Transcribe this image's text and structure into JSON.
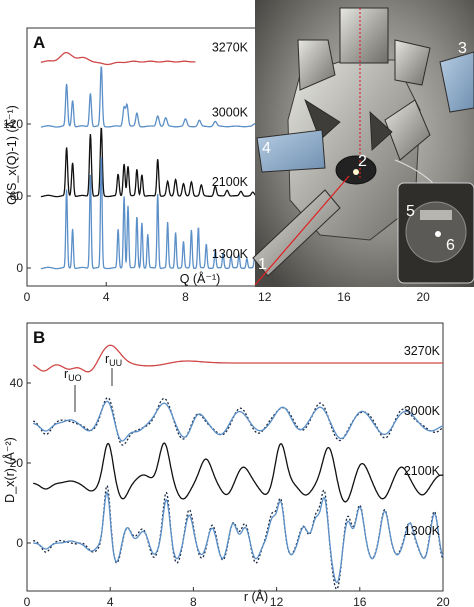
{
  "chart_data": [
    {
      "type": "line",
      "panel_label": "A",
      "ylabel": "Q(S_x(Q)-1) (Å⁻¹)",
      "xlabel": "Q (Å⁻¹)",
      "xlim": [
        0,
        21
      ],
      "xticks": [
        0,
        4,
        8,
        12,
        16,
        20
      ],
      "yticks": [
        0,
        60,
        120
      ],
      "ylim": [
        -15,
        200
      ],
      "series": [
        {
          "name": "3270K",
          "color": "#d04848",
          "offset": 172,
          "peaks": [
            [
              2.0,
              7,
              0.32
            ],
            [
              2.9,
              3,
              0.3
            ],
            [
              4.0,
              -2,
              0.5
            ]
          ]
        },
        {
          "name": "3000K",
          "color": "#5b8fc7",
          "offset": 118,
          "peaks": [
            [
              2.0,
              35,
              0.05
            ],
            [
              2.3,
              22,
              0.05
            ],
            [
              3.2,
              28,
              0.05
            ],
            [
              3.75,
              50,
              0.05
            ],
            [
              4.9,
              16,
              0.06
            ],
            [
              5.05,
              18,
              0.06
            ],
            [
              5.55,
              11,
              0.06
            ],
            [
              6.6,
              9,
              0.07
            ],
            [
              7.0,
              7,
              0.07
            ],
            [
              8.0,
              6,
              0.07
            ],
            [
              8.7,
              5,
              0.07
            ],
            [
              9.5,
              4,
              0.08
            ],
            [
              11.5,
              2,
              0.08
            ]
          ]
        },
        {
          "name": "2100K",
          "color": "#111111",
          "offset": 60,
          "peaks": [
            [
              2.0,
              40,
              0.05
            ],
            [
              2.3,
              28,
              0.05
            ],
            [
              3.2,
              52,
              0.05
            ],
            [
              3.75,
              57,
              0.05
            ],
            [
              4.6,
              18,
              0.05
            ],
            [
              4.9,
              27,
              0.05
            ],
            [
              5.1,
              25,
              0.05
            ],
            [
              5.55,
              22,
              0.05
            ],
            [
              5.8,
              18,
              0.05
            ],
            [
              6.6,
              31,
              0.05
            ],
            [
              7.1,
              12,
              0.06
            ],
            [
              7.5,
              14,
              0.06
            ],
            [
              7.9,
              10,
              0.06
            ],
            [
              8.3,
              12,
              0.06
            ],
            [
              8.8,
              9,
              0.06
            ],
            [
              9.5,
              8,
              0.06
            ],
            [
              10.1,
              5,
              0.07
            ],
            [
              10.8,
              4,
              0.07
            ],
            [
              11.4,
              3,
              0.07
            ],
            [
              12.0,
              3,
              0.07
            ]
          ]
        },
        {
          "name": "1300K",
          "color": "#5b8fc7",
          "offset": 0,
          "peaks": [
            [
              2.0,
              65,
              0.04
            ],
            [
              2.3,
              33,
              0.04
            ],
            [
              3.2,
              78,
              0.04
            ],
            [
              3.75,
              94,
              0.04
            ],
            [
              4.6,
              32,
              0.04
            ],
            [
              4.9,
              60,
              0.04
            ],
            [
              5.1,
              52,
              0.04
            ],
            [
              5.55,
              43,
              0.04
            ],
            [
              5.8,
              38,
              0.04
            ],
            [
              6.1,
              28,
              0.04
            ],
            [
              6.6,
              62,
              0.04
            ],
            [
              7.1,
              38,
              0.04
            ],
            [
              7.5,
              30,
              0.04
            ],
            [
              7.9,
              22,
              0.04
            ],
            [
              8.3,
              32,
              0.04
            ],
            [
              8.65,
              34,
              0.04
            ],
            [
              9.05,
              20,
              0.04
            ],
            [
              9.5,
              15,
              0.04
            ],
            [
              9.9,
              12,
              0.04
            ],
            [
              10.3,
              10,
              0.04
            ],
            [
              10.7,
              11,
              0.04
            ],
            [
              11.1,
              8,
              0.04
            ],
            [
              11.5,
              9,
              0.04
            ],
            [
              12.0,
              6,
              0.04
            ],
            [
              12.5,
              5,
              0.05
            ],
            [
              13.0,
              4,
              0.05
            ],
            [
              13.6,
              3,
              0.05
            ],
            [
              14.2,
              3,
              0.05
            ],
            [
              15.0,
              2,
              0.05
            ],
            [
              16.0,
              2,
              0.05
            ],
            [
              17.0,
              1.5,
              0.05
            ],
            [
              18.0,
              1.2,
              0.05
            ],
            [
              19.0,
              1,
              0.05
            ]
          ]
        }
      ]
    },
    {
      "type": "line",
      "panel_label": "B",
      "ylabel": "D_x(r) (Å⁻²)",
      "xlabel": "r (Å)",
      "xlim": [
        0,
        20
      ],
      "xticks": [
        0,
        4,
        8,
        12,
        16,
        20
      ],
      "yticks": [
        0,
        20,
        40
      ],
      "ylim": [
        -12,
        55
      ],
      "annotations": [
        {
          "text": "r_UO",
          "x": 2.2
        },
        {
          "text": "r_UU",
          "x": 4.0
        }
      ],
      "series": [
        {
          "name": "3270K",
          "color": "#d04848",
          "offset": 45,
          "style": "solid",
          "peaks": [
            [
              0.8,
              -2,
              0.3
            ],
            [
              2.0,
              -1.5,
              0.3
            ],
            [
              3.0,
              -2.5,
              0.35
            ],
            [
              4.0,
              4.5,
              0.45
            ],
            [
              6.0,
              -0.8,
              0.8
            ],
            [
              7.5,
              0.6,
              0.8
            ]
          ]
        },
        {
          "name": "3000K",
          "color": "#5b8fc7",
          "offset": 30,
          "style": "solid+dotted",
          "peaks": [
            [
              0.9,
              -2,
              0.25
            ],
            [
              2.1,
              0.8,
              0.25
            ],
            [
              3.0,
              -2,
              0.3
            ],
            [
              3.9,
              6,
              0.3
            ],
            [
              4.5,
              -5,
              0.3
            ],
            [
              5.3,
              -2,
              0.3
            ],
            [
              6.6,
              5,
              0.35
            ],
            [
              7.6,
              -4,
              0.35
            ],
            [
              8.2,
              3,
              0.3
            ],
            [
              9.3,
              -3,
              0.35
            ],
            [
              10.2,
              3,
              0.35
            ],
            [
              11.2,
              -2,
              0.35
            ],
            [
              12.3,
              4,
              0.35
            ],
            [
              13.1,
              -2,
              0.3
            ],
            [
              14.1,
              4,
              0.35
            ],
            [
              15.1,
              -4,
              0.35
            ],
            [
              16.1,
              3,
              0.35
            ],
            [
              17.2,
              -3,
              0.35
            ],
            [
              18.2,
              3,
              0.4
            ],
            [
              19.4,
              -2,
              0.4
            ]
          ]
        },
        {
          "name": "2100K",
          "color": "#111111",
          "offset": 15,
          "style": "solid",
          "peaks": [
            [
              0.9,
              -1.5,
              0.25
            ],
            [
              2.1,
              0.5,
              0.25
            ],
            [
              3.1,
              -2,
              0.3
            ],
            [
              3.9,
              10,
              0.22
            ],
            [
              4.6,
              -4,
              0.25
            ],
            [
              5.6,
              2,
              0.3
            ],
            [
              6.6,
              10,
              0.25
            ],
            [
              7.5,
              -4,
              0.3
            ],
            [
              8.6,
              6,
              0.28
            ],
            [
              9.6,
              -3,
              0.28
            ],
            [
              10.4,
              4,
              0.3
            ],
            [
              11.5,
              -3,
              0.3
            ],
            [
              12.2,
              10,
              0.25
            ],
            [
              13.4,
              -3,
              0.3
            ],
            [
              14.5,
              9,
              0.28
            ],
            [
              15.3,
              -5,
              0.3
            ],
            [
              16.1,
              5,
              0.3
            ],
            [
              17.1,
              -4,
              0.3
            ],
            [
              18.0,
              4,
              0.3
            ],
            [
              19.0,
              -3,
              0.3
            ],
            [
              19.9,
              2,
              0.3
            ]
          ]
        },
        {
          "name": "1300K",
          "color": "#5b8fc7",
          "offset": 0,
          "style": "solid+dotted",
          "peaks": [
            [
              0.9,
              -1.5,
              0.2
            ],
            [
              2.1,
              0.5,
              0.2
            ],
            [
              3.1,
              -2,
              0.25
            ],
            [
              3.85,
              13,
              0.15
            ],
            [
              4.3,
              -5,
              0.2
            ],
            [
              4.8,
              4,
              0.2
            ],
            [
              5.6,
              3,
              0.22
            ],
            [
              6.1,
              -3,
              0.2
            ],
            [
              6.7,
              11,
              0.16
            ],
            [
              7.2,
              -4,
              0.2
            ],
            [
              7.8,
              7,
              0.18
            ],
            [
              8.4,
              -3,
              0.2
            ],
            [
              8.9,
              4,
              0.18
            ],
            [
              9.4,
              -4,
              0.2
            ],
            [
              9.9,
              5,
              0.18
            ],
            [
              10.5,
              4,
              0.18
            ],
            [
              11.0,
              -4,
              0.2
            ],
            [
              11.8,
              6,
              0.18
            ],
            [
              12.2,
              10,
              0.16
            ],
            [
              12.7,
              -3,
              0.2
            ],
            [
              13.3,
              4,
              0.18
            ],
            [
              13.9,
              6,
              0.18
            ],
            [
              14.3,
              11,
              0.16
            ],
            [
              14.9,
              -10,
              0.22
            ],
            [
              15.4,
              6,
              0.18
            ],
            [
              16.0,
              9,
              0.18
            ],
            [
              16.6,
              -4,
              0.2
            ],
            [
              17.2,
              8,
              0.18
            ],
            [
              17.8,
              -3,
              0.2
            ],
            [
              18.4,
              5,
              0.18
            ],
            [
              19.1,
              -4,
              0.2
            ],
            [
              19.6,
              8,
              0.18
            ],
            [
              20.0,
              -4,
              0.2
            ]
          ]
        }
      ]
    }
  ],
  "photo": {
    "callouts": [
      "1",
      "2",
      "3",
      "4",
      "5",
      "6"
    ]
  }
}
